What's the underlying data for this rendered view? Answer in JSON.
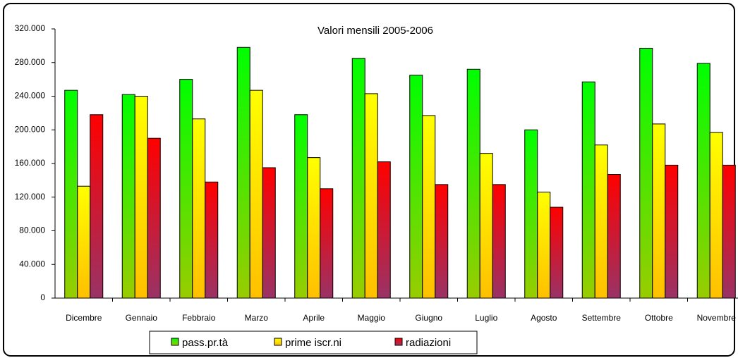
{
  "chart_data": {
    "type": "bar",
    "title": "Valori mensili 2005-2006",
    "categories": [
      "Dicembre",
      "Gennaio",
      "Febbraio",
      "Marzo",
      "Aprile",
      "Maggio",
      "Giugno",
      "Luglio",
      "Agosto",
      "Settembre",
      "Ottobre",
      "Novembre"
    ],
    "series": [
      {
        "name": "pass.pr.tà",
        "color": "#00ff00",
        "values": [
          247000,
          242000,
          260000,
          298000,
          218000,
          285000,
          265000,
          272000,
          200000,
          257000,
          297000,
          279000
        ]
      },
      {
        "name": "prime iscr.ni",
        "color": "#ffff00",
        "values": [
          133000,
          240000,
          213000,
          247000,
          167000,
          243000,
          217000,
          172000,
          126000,
          182000,
          207000,
          197000
        ]
      },
      {
        "name": "radiazioni",
        "color": "#ff0000",
        "values": [
          218000,
          190000,
          138000,
          155000,
          130000,
          162000,
          135000,
          135000,
          108000,
          147000,
          158000,
          158000
        ]
      }
    ],
    "ylim": [
      0,
      320000
    ],
    "yticks": [
      0,
      {
        "value": 40000,
        "label": "40.000"
      },
      {
        "value": 80000,
        "label": "80.000"
      },
      {
        "value": 120000,
        "label": "120.000"
      },
      {
        "value": 160000,
        "label": "160.000"
      },
      {
        "value": 200000,
        "label": "200.000"
      },
      {
        "value": 240000,
        "label": "240.000"
      },
      {
        "value": 280000,
        "label": "280.000"
      },
      {
        "value": 320000,
        "label": "320.000"
      }
    ]
  }
}
